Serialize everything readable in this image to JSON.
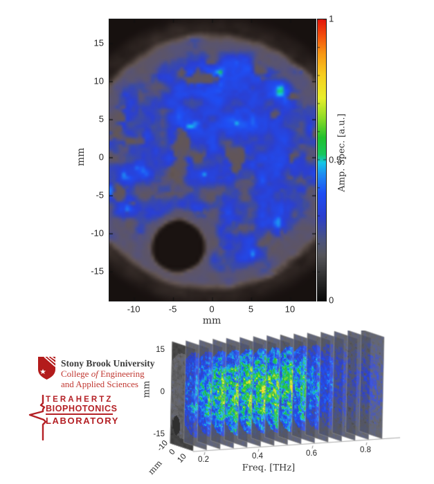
{
  "chart_data": [
    {
      "id": "amplitude_map",
      "type": "heatmap",
      "title": "",
      "xlabel": "mm",
      "ylabel": "mm",
      "x_ticks": [
        -10,
        -5,
        0,
        5,
        10
      ],
      "y_ticks": [
        15,
        10,
        5,
        0,
        -5,
        -10,
        -15
      ],
      "x_range": [
        -13.2,
        13.2
      ],
      "y_range": [
        -18.8,
        18.2
      ],
      "grid": false,
      "colorbar": {
        "label": "Amp. Spec. [a.u.]",
        "ticks": [
          0,
          0.5,
          1
        ],
        "minor_tick_step": 0.1,
        "range": [
          0,
          1
        ]
      },
      "colormap_stops": [
        [
          0.0,
          "#0a0a0a"
        ],
        [
          0.08,
          "#2e2e2e"
        ],
        [
          0.16,
          "#56565a"
        ],
        [
          0.22,
          "#4a5382"
        ],
        [
          0.3,
          "#2b3fd0"
        ],
        [
          0.38,
          "#1f4df4"
        ],
        [
          0.45,
          "#1e8df2"
        ],
        [
          0.49,
          "#15c6e8"
        ],
        [
          0.52,
          "#17c75f"
        ],
        [
          0.58,
          "#21c12e"
        ],
        [
          0.65,
          "#8edc27"
        ],
        [
          0.72,
          "#e8ef2b"
        ],
        [
          0.8,
          "#f7d01f"
        ],
        [
          0.88,
          "#f79613"
        ],
        [
          0.94,
          "#f4520d"
        ],
        [
          1.0,
          "#e3170a"
        ]
      ],
      "sample": {
        "center_mm": [
          0,
          -0.5
        ],
        "radius_mm": 16,
        "mean_amplitude": 0.28,
        "blob_amplitude": 0.42,
        "rim_amplitude": 0.17,
        "background_amplitude": 0.03,
        "gray_patch_amplitude": 0.16,
        "hole": {
          "center_mm": [
            -4.4,
            -11.6
          ],
          "radius_mm": 3.4,
          "amplitude": 0.02
        },
        "hotspots": [
          {
            "center_mm": [
              1,
              9
            ],
            "boost": 0.06
          },
          {
            "center_mm": [
              9,
              5
            ],
            "boost": 0.05
          }
        ]
      },
      "noise": {
        "seed": 7,
        "scale_per_mm": 0.45,
        "amplitude": 0.3
      }
    },
    {
      "id": "frequency_slice_stack",
      "type": "heatmap",
      "projection": "3d-slices",
      "xlabel": "Freq. [THz]",
      "x_ticks": [
        0.2,
        0.4,
        0.6,
        0.8
      ],
      "ylabel": "mm",
      "y_ticks": [
        15,
        0,
        -15
      ],
      "y_range": [
        -18,
        18
      ],
      "depth_label": "mm",
      "depth_ticks": [
        -10,
        0,
        10
      ],
      "depth_range": [
        -10,
        10
      ],
      "slice_frequencies_thz": [
        0.15,
        0.2,
        0.25,
        0.3,
        0.35,
        0.4,
        0.45,
        0.5,
        0.55,
        0.6,
        0.65,
        0.7,
        0.75,
        0.8,
        0.85
      ],
      "slice_peak_amplitudes": [
        0.12,
        0.5,
        0.58,
        0.66,
        0.72,
        0.74,
        0.72,
        0.74,
        0.7,
        0.62,
        0.52,
        0.42,
        0.33,
        0.28,
        0.3
      ],
      "sample_radius_mm": 16,
      "hole": {
        "center_mm": [
          -5,
          -11
        ],
        "radius_mm": 3.4
      },
      "noise": {
        "seed": 11
      }
    }
  ],
  "logo": {
    "university": "Stony Brook University",
    "college_pre": "College ",
    "college_of": "of",
    "college_post": " Engineering",
    "college_line2": "and Applied Sciences",
    "lab_line1": "TERAHERTZ",
    "lab_line2": "BIOPHOTONICS",
    "lab_line3": "LABORATORY",
    "colors": {
      "shield_red": "#b31b1b",
      "college_red": "#c13832",
      "lab_red": "#b41f24",
      "university_text": "#3b3b3b"
    }
  }
}
